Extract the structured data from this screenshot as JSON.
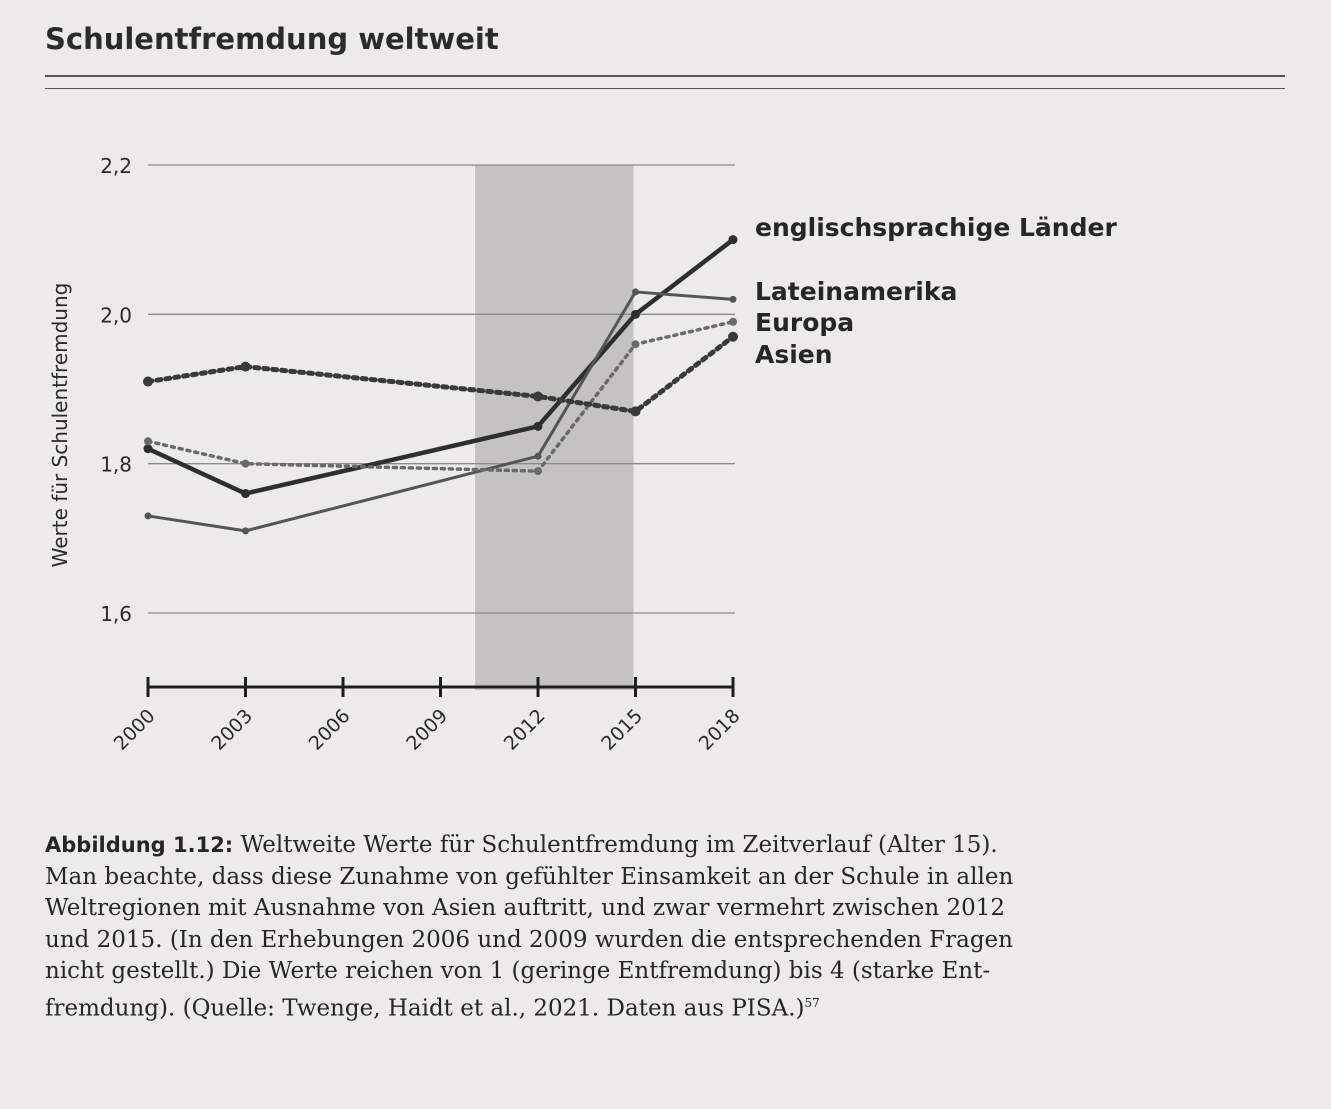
{
  "title": "Schulentfremdung weltweit",
  "chart_data": {
    "type": "line",
    "title": "Schulentfremdung weltweit",
    "xlabel": "",
    "ylabel": "Werte für Schulentfremdung",
    "x": [
      2000,
      2003,
      2006,
      2009,
      2012,
      2015,
      2018
    ],
    "x_tick_labels": [
      "2000",
      "2003",
      "2006",
      "2009",
      "2012",
      "2015",
      "2018"
    ],
    "ylim": [
      1.6,
      2.2
    ],
    "y_ticks": [
      1.6,
      1.8,
      2.0,
      2.2
    ],
    "y_tick_labels": [
      "1,6",
      "1,8",
      "2,0",
      "2,2"
    ],
    "grid": true,
    "shaded_region": [
      2012,
      2015
    ],
    "legend_placement": "right (direct labels)",
    "series": [
      {
        "name": "englischsprachige Länder",
        "style": "thick-solid",
        "x": [
          2000,
          2003,
          2012,
          2015,
          2018
        ],
        "values": [
          1.82,
          1.76,
          1.85,
          2.0,
          2.1
        ]
      },
      {
        "name": "Lateinamerika",
        "style": "thin-solid",
        "x": [
          2000,
          2003,
          2012,
          2015,
          2018
        ],
        "values": [
          1.73,
          1.71,
          1.81,
          2.03,
          2.02
        ]
      },
      {
        "name": "Europa",
        "style": "thin-dotted",
        "x": [
          2000,
          2003,
          2012,
          2015,
          2018
        ],
        "values": [
          1.83,
          1.8,
          1.79,
          1.96,
          1.99
        ]
      },
      {
        "name": "Asien",
        "style": "thick-dotted",
        "x": [
          2000,
          2003,
          2012,
          2015,
          2018
        ],
        "values": [
          1.91,
          1.93,
          1.89,
          1.87,
          1.97
        ]
      }
    ]
  },
  "caption": {
    "label": "Abbildung 1.12:",
    "lines": [
      " Weltweite Werte für Schulentfremdung im Zeitverlauf (Alter 15).",
      "Man beachte, dass diese Zunahme von gefühlter Einsamkeit an der Schule in allen",
      "Weltregionen mit Ausnahme von Asien auftritt, und zwar vermehrt zwischen 2012",
      "und 2015. (In den Erhebungen 2006 und 2009 wurden die entsprechenden Fragen",
      "nicht gestellt.) Die Werte reichen von 1 (geringe Entfremdung) bis 4 (starke Ent-",
      "fremdung). (Quelle: Twenge, Haidt et al., 2021. Daten aus PISA.)"
    ],
    "footnote": "57"
  }
}
